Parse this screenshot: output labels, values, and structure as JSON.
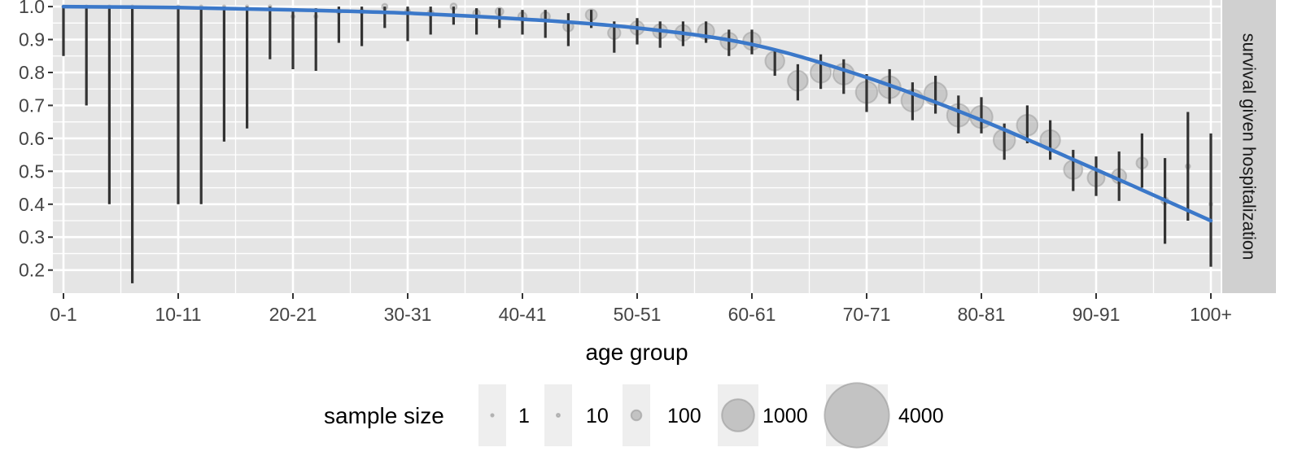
{
  "chart_data": {
    "type": "scatter",
    "xlabel": "age group",
    "facet_strip_label": "survival given hospitalization",
    "x_tick_labels": [
      "0-1",
      "10-11",
      "20-21",
      "30-31",
      "40-41",
      "50-51",
      "60-61",
      "70-71",
      "80-81",
      "90-91",
      "100+"
    ],
    "ylim": [
      0.13,
      1.02
    ],
    "y_ticks": [
      0.2,
      0.3,
      0.4,
      0.5,
      0.6,
      0.7,
      0.8,
      0.9,
      1.0
    ],
    "y_tick_labels": [
      "0.2",
      "0.3",
      "0.4",
      "0.5",
      "0.6",
      "0.7",
      "0.8",
      "0.9",
      "1.0"
    ],
    "grid": true,
    "legend_position": "bottom",
    "legend": {
      "title": "sample size",
      "entries": [
        {
          "label": "1",
          "value": 1
        },
        {
          "label": "10",
          "value": 10
        },
        {
          "label": "100",
          "value": 100
        },
        {
          "label": "1000",
          "value": 1000
        },
        {
          "label": "4000",
          "value": 4000
        }
      ]
    },
    "colors": {
      "panel_bg": "#e5e5e5",
      "grid": "#ffffff",
      "strip_bg": "#d0d0d0",
      "fit_line": "#3b78c9",
      "error_bar": "#333333",
      "point_fill": "#b0b0b0"
    },
    "points": [
      {
        "age": 0,
        "y": 1.0,
        "ylo": 0.85,
        "yhi": 1.0,
        "n": 2
      },
      {
        "age": 2,
        "y": 1.0,
        "ylo": 0.7,
        "yhi": 1.0,
        "n": 2
      },
      {
        "age": 4,
        "y": 1.0,
        "ylo": 0.4,
        "yhi": 1.0,
        "n": 2
      },
      {
        "age": 6,
        "y": 1.0,
        "ylo": 0.16,
        "yhi": 1.0,
        "n": 1
      },
      {
        "age": 10,
        "y": 1.0,
        "ylo": 0.4,
        "yhi": 1.0,
        "n": 2
      },
      {
        "age": 12,
        "y": 1.0,
        "ylo": 0.4,
        "yhi": 1.0,
        "n": 2
      },
      {
        "age": 14,
        "y": 1.0,
        "ylo": 0.59,
        "yhi": 1.0,
        "n": 3
      },
      {
        "age": 16,
        "y": 1.0,
        "ylo": 0.63,
        "yhi": 1.0,
        "n": 3
      },
      {
        "age": 18,
        "y": 1.0,
        "ylo": 0.84,
        "yhi": 1.0,
        "n": 8
      },
      {
        "age": 20,
        "y": 0.97,
        "ylo": 0.81,
        "yhi": 0.995,
        "n": 12
      },
      {
        "age": 22,
        "y": 0.97,
        "ylo": 0.805,
        "yhi": 0.995,
        "n": 12
      },
      {
        "age": 24,
        "y": 0.985,
        "ylo": 0.89,
        "yhi": 1.0,
        "n": 20
      },
      {
        "age": 26,
        "y": 0.985,
        "ylo": 0.88,
        "yhi": 1.0,
        "n": 20
      },
      {
        "age": 28,
        "y": 1.0,
        "ylo": 0.935,
        "yhi": 1.0,
        "n": 30
      },
      {
        "age": 30,
        "y": 0.985,
        "ylo": 0.895,
        "yhi": 1.0,
        "n": 25
      },
      {
        "age": 32,
        "y": 0.98,
        "ylo": 0.915,
        "yhi": 1.0,
        "n": 35
      },
      {
        "age": 34,
        "y": 1.0,
        "ylo": 0.945,
        "yhi": 1.0,
        "n": 40
      },
      {
        "age": 36,
        "y": 0.98,
        "ylo": 0.915,
        "yhi": 0.995,
        "n": 45
      },
      {
        "age": 38,
        "y": 0.985,
        "ylo": 0.935,
        "yhi": 0.995,
        "n": 60
      },
      {
        "age": 40,
        "y": 0.97,
        "ylo": 0.915,
        "yhi": 0.99,
        "n": 70
      },
      {
        "age": 42,
        "y": 0.97,
        "ylo": 0.905,
        "yhi": 0.99,
        "n": 80
      },
      {
        "age": 44,
        "y": 0.94,
        "ylo": 0.88,
        "yhi": 0.98,
        "n": 100
      },
      {
        "age": 46,
        "y": 0.975,
        "ylo": 0.935,
        "yhi": 0.99,
        "n": 120
      },
      {
        "age": 48,
        "y": 0.92,
        "ylo": 0.86,
        "yhi": 0.955,
        "n": 150
      },
      {
        "age": 50,
        "y": 0.935,
        "ylo": 0.885,
        "yhi": 0.965,
        "n": 180
      },
      {
        "age": 52,
        "y": 0.925,
        "ylo": 0.875,
        "yhi": 0.955,
        "n": 200
      },
      {
        "age": 54,
        "y": 0.92,
        "ylo": 0.88,
        "yhi": 0.955,
        "n": 240
      },
      {
        "age": 56,
        "y": 0.925,
        "ylo": 0.89,
        "yhi": 0.955,
        "n": 260
      },
      {
        "age": 58,
        "y": 0.895,
        "ylo": 0.85,
        "yhi": 0.93,
        "n": 280
      },
      {
        "age": 60,
        "y": 0.895,
        "ylo": 0.855,
        "yhi": 0.93,
        "n": 300
      },
      {
        "age": 62,
        "y": 0.835,
        "ylo": 0.79,
        "yhi": 0.87,
        "n": 350
      },
      {
        "age": 64,
        "y": 0.775,
        "ylo": 0.715,
        "yhi": 0.825,
        "n": 380
      },
      {
        "age": 66,
        "y": 0.8,
        "ylo": 0.75,
        "yhi": 0.855,
        "n": 400
      },
      {
        "age": 68,
        "y": 0.795,
        "ylo": 0.735,
        "yhi": 0.84,
        "n": 420
      },
      {
        "age": 70,
        "y": 0.74,
        "ylo": 0.68,
        "yhi": 0.795,
        "n": 450
      },
      {
        "age": 72,
        "y": 0.755,
        "ylo": 0.705,
        "yhi": 0.81,
        "n": 470
      },
      {
        "age": 74,
        "y": 0.715,
        "ylo": 0.655,
        "yhi": 0.77,
        "n": 480
      },
      {
        "age": 76,
        "y": 0.735,
        "ylo": 0.675,
        "yhi": 0.79,
        "n": 500
      },
      {
        "age": 78,
        "y": 0.67,
        "ylo": 0.615,
        "yhi": 0.73,
        "n": 500
      },
      {
        "age": 80,
        "y": 0.665,
        "ylo": 0.615,
        "yhi": 0.725,
        "n": 480
      },
      {
        "age": 82,
        "y": 0.595,
        "ylo": 0.535,
        "yhi": 0.645,
        "n": 450
      },
      {
        "age": 84,
        "y": 0.64,
        "ylo": 0.585,
        "yhi": 0.7,
        "n": 420
      },
      {
        "age": 86,
        "y": 0.595,
        "ylo": 0.535,
        "yhi": 0.655,
        "n": 380
      },
      {
        "age": 88,
        "y": 0.505,
        "ylo": 0.44,
        "yhi": 0.565,
        "n": 330
      },
      {
        "age": 90,
        "y": 0.48,
        "ylo": 0.425,
        "yhi": 0.545,
        "n": 280
      },
      {
        "age": 92,
        "y": 0.485,
        "ylo": 0.41,
        "yhi": 0.56,
        "n": 200
      },
      {
        "age": 94,
        "y": 0.525,
        "ylo": 0.45,
        "yhi": 0.615,
        "n": 120
      },
      {
        "age": 96,
        "y": 0.41,
        "ylo": 0.28,
        "yhi": 0.54,
        "n": 50
      },
      {
        "age": 98,
        "y": 0.515,
        "ylo": 0.35,
        "yhi": 0.68,
        "n": 20
      },
      {
        "age": 100,
        "y": 0.4,
        "ylo": 0.21,
        "yhi": 0.615,
        "n": 10
      }
    ],
    "fit_line": {
      "x": [
        0,
        10,
        20,
        30,
        40,
        50,
        60,
        70,
        80,
        90,
        100
      ],
      "y": [
        1.0,
        0.997,
        0.99,
        0.98,
        0.962,
        0.935,
        0.885,
        0.785,
        0.655,
        0.505,
        0.35
      ]
    }
  }
}
